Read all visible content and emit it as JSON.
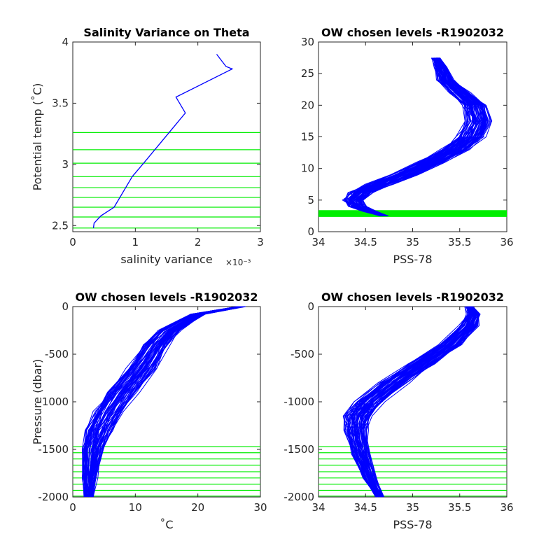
{
  "chart_data": [
    {
      "type": "line",
      "title": "Salinity Variance on Theta",
      "xlabel": "salinity variance",
      "x_exponent_label": "×10⁻³",
      "ylabel": "Potential temp (˚C)",
      "xlim": [
        0,
        3
      ],
      "ylim": [
        2.45,
        4
      ],
      "x_ticks": [
        "0",
        "1",
        "2",
        "3"
      ],
      "y_ticks": [
        "2.5",
        "3",
        "3.5",
        "4"
      ],
      "series": [
        {
          "color": "#0000ff",
          "x": [
            0.33,
            0.34,
            0.45,
            0.66,
            0.95,
            1.15,
            1.8,
            1.65,
            2.55,
            2.45,
            2.3
          ],
          "y": [
            2.48,
            2.52,
            2.58,
            2.65,
            2.9,
            3.02,
            3.42,
            3.55,
            3.78,
            3.8,
            3.9
          ]
        }
      ],
      "reference_lines": {
        "color": "#00ee00",
        "orientation": "horizontal",
        "values": [
          2.48,
          2.57,
          2.65,
          2.73,
          2.81,
          2.9,
          3.01,
          3.12,
          3.26
        ]
      }
    },
    {
      "type": "line",
      "title": "OW chosen levels -R1902032",
      "xlabel": "PSS-78",
      "ylabel": "",
      "xlim": [
        34,
        36
      ],
      "ylim": [
        0,
        30
      ],
      "x_ticks": [
        "34",
        "34.5",
        "35",
        "35.5",
        "36"
      ],
      "y_ticks": [
        "0",
        "5",
        "10",
        "15",
        "20",
        "25",
        "30"
      ],
      "series": [
        {
          "color": "#0000ff",
          "x": [
            34.7,
            34.55,
            34.42,
            34.37,
            34.45,
            34.65,
            34.9,
            35.2,
            35.45,
            35.62,
            35.7,
            35.65,
            35.5,
            35.35,
            35.3,
            35.25
          ],
          "y": [
            2.5,
            3.2,
            4.0,
            5.0,
            6.2,
            7.5,
            9.0,
            11.0,
            13.0,
            15.0,
            17.5,
            20.0,
            22.0,
            24.0,
            26.0,
            27.5
          ]
        }
      ],
      "reference_lines": {
        "color": "#00ee00",
        "orientation": "horizontal",
        "values": [
          2.48,
          2.57,
          2.65,
          2.73,
          2.81,
          2.9,
          3.01,
          3.12,
          3.26
        ]
      }
    },
    {
      "type": "line",
      "title": "OW chosen levels -R1902032",
      "xlabel": "˚C",
      "ylabel": "Pressure (dbar)",
      "xlim": [
        0,
        30
      ],
      "ylim": [
        -2000,
        0
      ],
      "x_ticks": [
        "0",
        "10",
        "20",
        "30"
      ],
      "y_ticks": [
        "-2000",
        "-1500",
        "-1000",
        "-500",
        "0"
      ],
      "series": [
        {
          "color": "#0000ff",
          "x": [
            2.5,
            2.8,
            3.3,
            4.2,
            5.8,
            8.0,
            11.0,
            13.5,
            15.5,
            20.0,
            27.0
          ],
          "y": [
            -2000,
            -1800,
            -1500,
            -1300,
            -1100,
            -900,
            -650,
            -400,
            -250,
            -80,
            0
          ]
        }
      ],
      "reference_lines": {
        "color": "#00ee00",
        "orientation": "horizontal",
        "values": [
          -1470,
          -1535,
          -1600,
          -1665,
          -1735,
          -1800,
          -1865,
          -1930,
          -1990
        ]
      }
    },
    {
      "type": "line",
      "title": "OW chosen levels -R1902032",
      "xlabel": "PSS-78",
      "ylabel": "",
      "xlim": [
        34,
        36
      ],
      "ylim": [
        -2000,
        0
      ],
      "x_ticks": [
        "34",
        "34.5",
        "35",
        "35.5",
        "36"
      ],
      "y_ticks": [
        "-2000",
        "-1500",
        "-1000",
        "-500",
        "0"
      ],
      "series": [
        {
          "color": "#0000ff",
          "x": [
            34.65,
            34.55,
            34.45,
            34.4,
            34.42,
            34.55,
            34.8,
            35.1,
            35.4,
            35.6,
            35.65,
            35.6
          ],
          "y": [
            -2000,
            -1800,
            -1550,
            -1300,
            -1150,
            -1000,
            -800,
            -600,
            -400,
            -200,
            -80,
            0
          ]
        }
      ],
      "reference_lines": {
        "color": "#00ee00",
        "orientation": "horizontal",
        "values": [
          -1470,
          -1535,
          -1600,
          -1665,
          -1735,
          -1800,
          -1865,
          -1930,
          -1990
        ]
      }
    }
  ]
}
